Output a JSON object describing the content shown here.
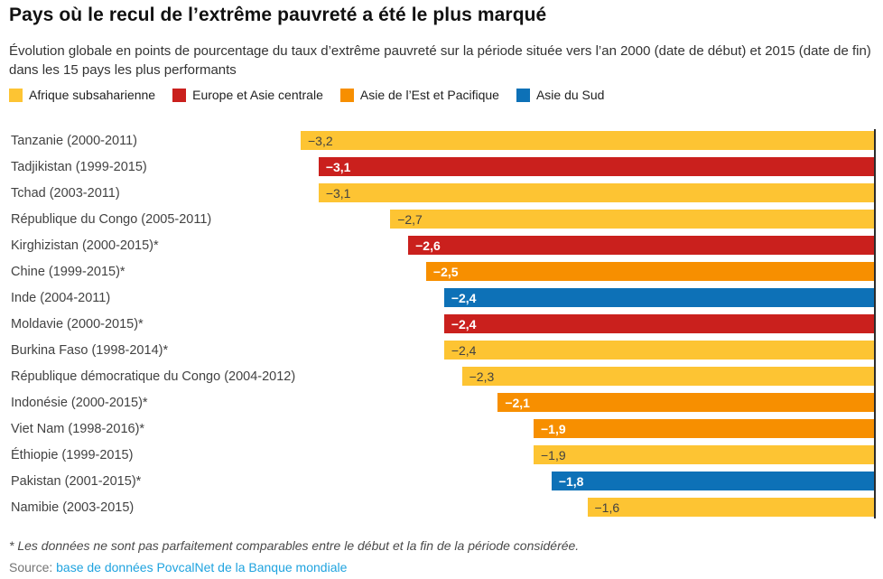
{
  "header": {
    "title": "Pays où le recul de l’extrême pauvreté a été le plus marqué",
    "subtitle": "Évolution globale en points de pourcentage du taux d’extrême pauvreté sur la période située vers l’an 2000 (date de début) et 2015 (date de fin) dans les 15 pays les plus performants"
  },
  "chart_data": {
    "type": "bar",
    "orientation": "horizontal-right-aligned",
    "title": "Pays où le recul de l’extrême pauvreté a été le plus marqué",
    "value_unit": "points de pourcentage",
    "xlim": [
      -3.2,
      0
    ],
    "legend_position": "top",
    "regions": {
      "afrique_subsaharienne": {
        "label": "Afrique subsaharienne",
        "color": "#FDC433",
        "value_text": "#424242",
        "value_weight": "400"
      },
      "europe_asie_centrale": {
        "label": "Europe et Asie centrale",
        "color": "#CA201D",
        "value_text": "#FFFFFF",
        "value_weight": "700"
      },
      "asie_est_pacifique": {
        "label": "Asie de l’Est et Pacifique",
        "color": "#F78F00",
        "value_text": "#FFFFFF",
        "value_weight": "700"
      },
      "asie_du_sud": {
        "label": "Asie du Sud",
        "color": "#0D71B7",
        "value_text": "#FFFFFF",
        "value_weight": "700"
      }
    },
    "rows": [
      {
        "label": "Tanzanie (2000-2011)",
        "value": -3.2,
        "value_label": "−3,2",
        "region": "afrique_subsaharienne"
      },
      {
        "label": "Tadjikistan (1999-2015)",
        "value": -3.1,
        "value_label": "−3,1",
        "region": "europe_asie_centrale"
      },
      {
        "label": "Tchad (2003-2011)",
        "value": -3.1,
        "value_label": "−3,1",
        "region": "afrique_subsaharienne"
      },
      {
        "label": "République du Congo (2005-2011)",
        "value": -2.7,
        "value_label": "−2,7",
        "region": "afrique_subsaharienne"
      },
      {
        "label": "Kirghizistan (2000-2015)*",
        "value": -2.6,
        "value_label": "−2,6",
        "region": "europe_asie_centrale"
      },
      {
        "label": "Chine (1999-2015)*",
        "value": -2.5,
        "value_label": "−2,5",
        "region": "asie_est_pacifique"
      },
      {
        "label": "Inde (2004-2011)",
        "value": -2.4,
        "value_label": "−2,4",
        "region": "asie_du_sud"
      },
      {
        "label": "Moldavie (2000-2015)*",
        "value": -2.4,
        "value_label": "−2,4",
        "region": "europe_asie_centrale"
      },
      {
        "label": "Burkina Faso (1998-2014)*",
        "value": -2.4,
        "value_label": "−2,4",
        "region": "afrique_subsaharienne"
      },
      {
        "label": "République démocratique du Congo (2004-2012)",
        "value": -2.3,
        "value_label": "−2,3",
        "region": "afrique_subsaharienne"
      },
      {
        "label": "Indonésie (2000-2015)*",
        "value": -2.1,
        "value_label": "−2,1",
        "region": "asie_est_pacifique"
      },
      {
        "label": "Viet Nam (1998-2016)*",
        "value": -1.9,
        "value_label": "−1,9",
        "region": "asie_est_pacifique"
      },
      {
        "label": "Éthiopie (1999-2015)",
        "value": -1.9,
        "value_label": "−1,9",
        "region": "afrique_subsaharienne"
      },
      {
        "label": "Pakistan (2001-2015)*",
        "value": -1.8,
        "value_label": "−1,8",
        "region": "asie_du_sud"
      },
      {
        "label": "Namibie (2003-2015)",
        "value": -1.6,
        "value_label": "−1,6",
        "region": "afrique_subsaharienne"
      }
    ]
  },
  "footer": {
    "note": "* Les données ne sont pas parfaitement comparables entre le début et la fin de la période considérée.",
    "source_label": "Source:",
    "source_link": "base de données PovcalNet de la Banque mondiale",
    "source_link_color": "#1FA3DF"
  }
}
